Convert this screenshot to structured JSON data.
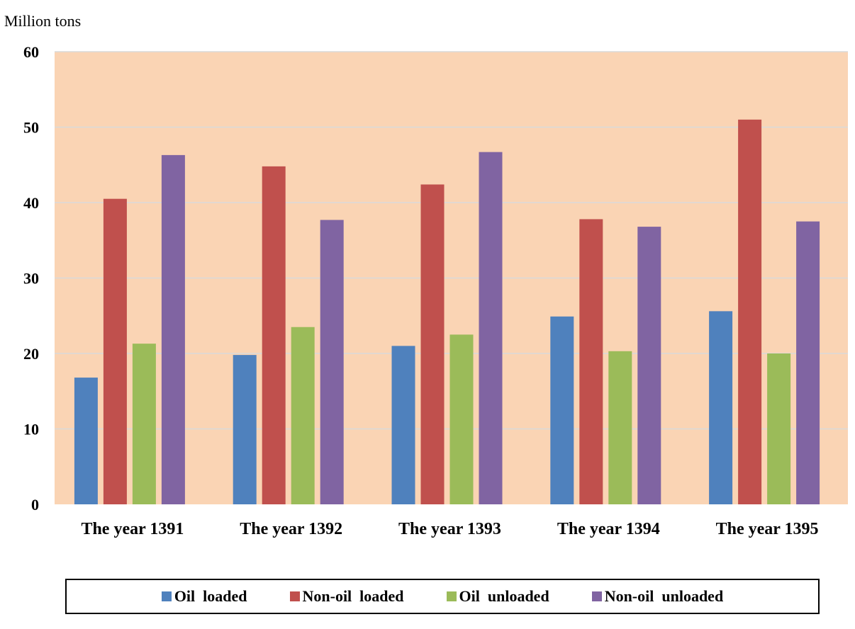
{
  "chart_data": {
    "type": "bar",
    "ylabel": "Million tons",
    "xlabel": "",
    "ylim": [
      0,
      60
    ],
    "yticks": [
      0,
      10,
      20,
      30,
      40,
      50,
      60
    ],
    "grid": true,
    "legend_position": "bottom",
    "plot_background": "#FAD4B4",
    "categories": [
      "The year 1391",
      "The year 1392",
      "The year 1393",
      "The year 1394",
      "The year 1395"
    ],
    "series": [
      {
        "name": "Oil  loaded",
        "color": "#4F81BD",
        "values": [
          16.8,
          19.8,
          21.0,
          24.9,
          25.6
        ]
      },
      {
        "name": "Non-oil  loaded",
        "color": "#C0504D",
        "values": [
          40.5,
          44.8,
          42.4,
          37.8,
          51.0
        ]
      },
      {
        "name": "Oil  unloaded",
        "color": "#9BBB59",
        "values": [
          21.3,
          23.5,
          22.5,
          20.3,
          20.0
        ]
      },
      {
        "name": "Non-oil  unloaded",
        "color": "#8064A2",
        "values": [
          46.3,
          37.7,
          46.7,
          36.8,
          37.5
        ]
      }
    ]
  }
}
